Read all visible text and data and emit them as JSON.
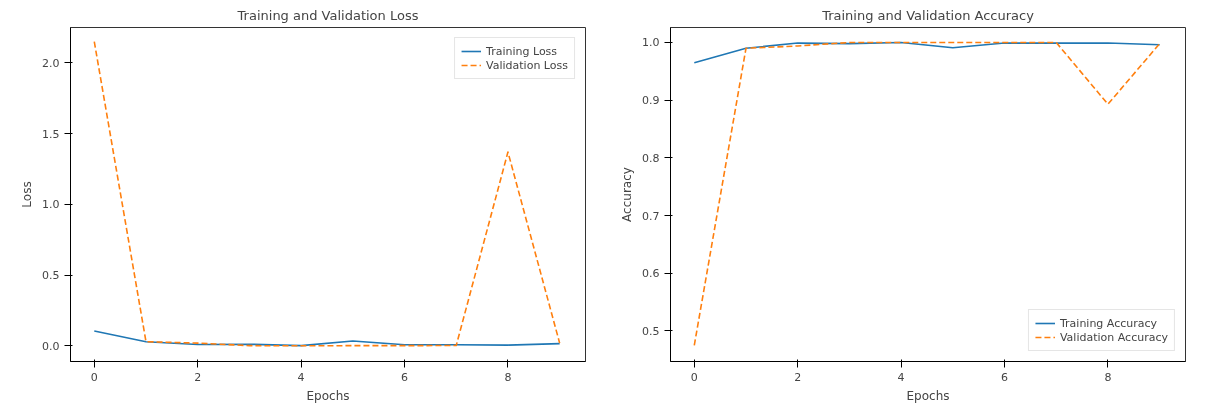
{
  "chart_data": [
    {
      "type": "line",
      "title": "Training and Validation Loss",
      "xlabel": "Epochs",
      "ylabel": "Loss",
      "x": [
        0,
        1,
        2,
        3,
        4,
        5,
        6,
        7,
        8,
        9
      ],
      "xlim": [
        -0.46,
        9.5
      ],
      "xticks": [
        0,
        2,
        4,
        6,
        8
      ],
      "ylim": [
        -0.11,
        2.25
      ],
      "yticks": [
        {
          "value": 0,
          "label": "0.0"
        },
        0.5,
        {
          "value": 1,
          "label": "1.0"
        },
        1.5,
        {
          "value": 2,
          "label": "2.0"
        }
      ],
      "grid": false,
      "legend": "top right",
      "series": [
        {
          "name": "Training Loss",
          "color": "#1f77b4",
          "line_style": "solid",
          "values": [
            0.105,
            0.03,
            0.01,
            0.012,
            0.002,
            0.035,
            0.008,
            0.008,
            0.006,
            0.016
          ]
        },
        {
          "name": "Validation Loss",
          "color": "#ff7f0e",
          "line_style": "dashed",
          "values": [
            2.15,
            0.03,
            0.02,
            0.002,
            0.001,
            0.002,
            0.002,
            0.003,
            1.37,
            0.02
          ]
        }
      ]
    },
    {
      "type": "line",
      "title": "Training and Validation Accuracy",
      "xlabel": "Epochs",
      "ylabel": "Accuracy",
      "x": [
        0,
        1,
        2,
        3,
        4,
        5,
        6,
        7,
        8,
        9
      ],
      "xlim": [
        -0.46,
        9.5
      ],
      "xticks": [
        0,
        2,
        4,
        6,
        8
      ],
      "ylim": [
        0.447,
        1.026
      ],
      "yticks": [
        0.5,
        0.6,
        0.7,
        0.8,
        0.9,
        {
          "value": 1,
          "label": "1.0"
        }
      ],
      "grid": false,
      "legend": "bottom right",
      "series": [
        {
          "name": "Training Accuracy",
          "color": "#1f77b4",
          "line_style": "solid",
          "values": [
            0.965,
            0.99,
            0.999,
            0.998,
            1.0,
            0.991,
            0.999,
            0.999,
            0.999,
            0.996
          ]
        },
        {
          "name": "Validation Accuracy",
          "color": "#ff7f0e",
          "line_style": "dashed",
          "values": [
            0.475,
            0.99,
            0.994,
            1.0,
            1.0,
            1.0,
            1.0,
            1.0,
            0.893,
            0.998
          ]
        }
      ]
    }
  ]
}
